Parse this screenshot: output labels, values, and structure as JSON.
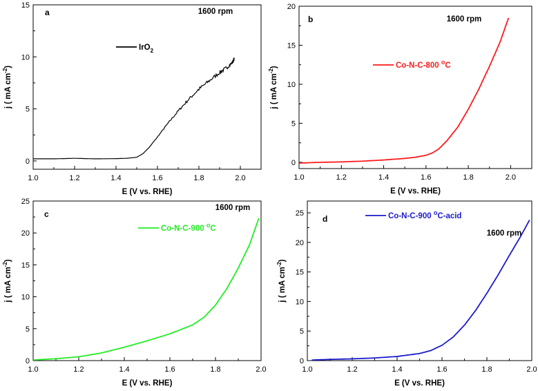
{
  "chart_data": [
    {
      "type": "line",
      "panel": "a",
      "rpm": "1600 rpm",
      "xlabel": "E (V vs. RHE)",
      "ylabel_main": "j ( mA cm",
      "ylabel_sup": "-2",
      "ylabel_end": ")",
      "xlim": [
        1.0,
        2.1
      ],
      "ylim": [
        -0.8,
        15
      ],
      "xticks": [
        "1.0",
        "1.2",
        "1.4",
        "1.6",
        "1.8",
        "2.0"
      ],
      "yticks": [
        "0",
        "5",
        "10",
        "15"
      ],
      "series": [
        {
          "name": "IrO",
          "name_sub": "2",
          "color": "#000000",
          "noisy": true,
          "x": [
            1.0,
            1.1,
            1.2,
            1.3,
            1.4,
            1.45,
            1.5,
            1.53,
            1.56,
            1.6,
            1.65,
            1.7,
            1.75,
            1.8,
            1.85,
            1.9,
            1.93,
            1.96,
            1.97
          ],
          "y": [
            0.2,
            0.2,
            0.25,
            0.2,
            0.22,
            0.25,
            0.35,
            0.7,
            1.3,
            2.3,
            3.6,
            4.8,
            5.9,
            6.9,
            7.7,
            8.5,
            8.9,
            9.4,
            9.8
          ]
        }
      ]
    },
    {
      "type": "line",
      "panel": "b",
      "rpm": "1600 rpm",
      "xlabel": "E (V vs. RHE)",
      "ylabel_main": "j ( mA cm",
      "ylabel_sup": "-2",
      "ylabel_end": ")",
      "xlim": [
        1.0,
        2.1
      ],
      "ylim": [
        -0.8,
        20
      ],
      "xticks": [
        "1.0",
        "1.2",
        "1.4",
        "1.6",
        "1.8",
        "2.0"
      ],
      "yticks": [
        "0",
        "5",
        "10",
        "15",
        "20"
      ],
      "series": [
        {
          "name": "Co-N-C-800 ",
          "name_sup": "o",
          "name_end": "C",
          "color": "#ff1a1a",
          "noisy": false,
          "x": [
            1.0,
            1.1,
            1.2,
            1.3,
            1.4,
            1.5,
            1.55,
            1.6,
            1.63,
            1.66,
            1.7,
            1.75,
            1.8,
            1.85,
            1.9,
            1.95,
            1.99
          ],
          "y": [
            -0.1,
            0.0,
            0.05,
            0.15,
            0.3,
            0.5,
            0.65,
            0.9,
            1.2,
            1.7,
            2.8,
            4.5,
            6.8,
            9.4,
            12.3,
            15.4,
            18.5
          ]
        }
      ]
    },
    {
      "type": "line",
      "panel": "c",
      "rpm": "1600 rpm",
      "xlabel": "E (V vs. RHE)",
      "ylabel_main": "j ( mA cm",
      "ylabel_sup": "-2",
      "ylabel_end": ")",
      "xlim": [
        1.0,
        2.0
      ],
      "ylim": [
        0,
        25
      ],
      "xticks": [
        "1.0",
        "1.2",
        "1.4",
        "1.6",
        "1.8",
        "2.0"
      ],
      "yticks": [
        "0",
        "5",
        "10",
        "15",
        "20",
        "25"
      ],
      "series": [
        {
          "name": "Co-N-C-900 ",
          "name_sup": "o",
          "name_end": "C",
          "color": "#22ee22",
          "noisy": false,
          "x": [
            1.0,
            1.1,
            1.2,
            1.3,
            1.4,
            1.5,
            1.6,
            1.7,
            1.75,
            1.8,
            1.85,
            1.9,
            1.95,
            1.99
          ],
          "y": [
            0.1,
            0.3,
            0.6,
            1.2,
            2.1,
            3.1,
            4.2,
            5.6,
            6.8,
            8.7,
            11.3,
            14.5,
            18.2,
            22.3
          ]
        }
      ]
    },
    {
      "type": "line",
      "panel": "d",
      "rpm": "1600 rpm",
      "xlabel": "E (V vs. RHE)",
      "ylabel_main": "j ( mA cm",
      "ylabel_sup": "-2",
      "ylabel_end": ")",
      "xlim": [
        1.0,
        2.0
      ],
      "ylim": [
        0,
        27
      ],
      "xticks": [
        "1.0",
        "1.2",
        "1.4",
        "1.6",
        "1.8",
        "2.0"
      ],
      "yticks": [
        "0",
        "5",
        "10",
        "15",
        "20",
        "25"
      ],
      "series": [
        {
          "name": "Co-N-C-900 ",
          "name_sup": "o",
          "name_end": "C-acid",
          "color": "#1a1acc",
          "noisy": false,
          "x": [
            1.02,
            1.1,
            1.2,
            1.3,
            1.4,
            1.5,
            1.55,
            1.6,
            1.65,
            1.7,
            1.75,
            1.8,
            1.85,
            1.9,
            1.95,
            1.99
          ],
          "y": [
            0.1,
            0.2,
            0.3,
            0.45,
            0.7,
            1.2,
            1.7,
            2.6,
            4.0,
            6.0,
            8.5,
            11.4,
            14.5,
            17.8,
            21.0,
            23.8
          ]
        }
      ]
    }
  ]
}
